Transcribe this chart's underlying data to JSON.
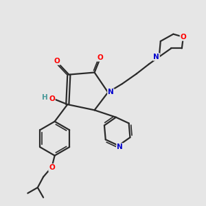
{
  "background_color": "#e6e6e6",
  "bond_color": "#2a2a2a",
  "atom_colors": {
    "O": "#ff0000",
    "N": "#0000cd",
    "H": "#4a9a9a",
    "C": "#2a2a2a"
  },
  "figsize": [
    3.0,
    3.0
  ],
  "dpi": 100
}
